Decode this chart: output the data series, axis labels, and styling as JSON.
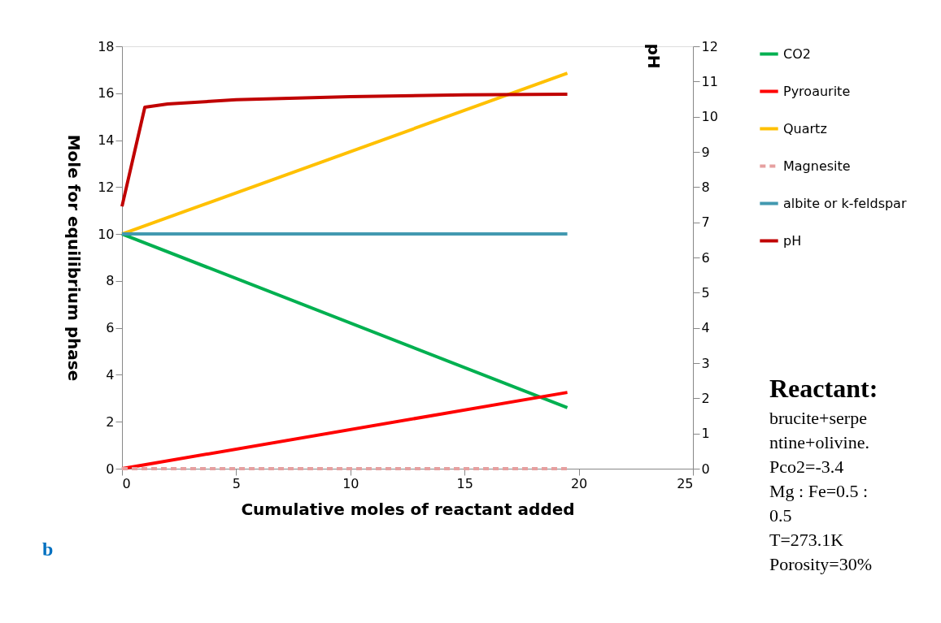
{
  "chart_data": {
    "type": "line",
    "xlabel": "Cumulative moles of reactant added",
    "ylabel": "Mole for equilibrium phase",
    "y2label": "pH",
    "xlim": [
      0,
      25
    ],
    "xticks": [
      0,
      5,
      10,
      15,
      20,
      25
    ],
    "ylim": [
      0,
      18
    ],
    "yticks": [
      0,
      2,
      4,
      6,
      8,
      10,
      12,
      14,
      16,
      18
    ],
    "y2lim": [
      0,
      12
    ],
    "y2ticks": [
      0,
      1,
      2,
      3,
      4,
      5,
      6,
      7,
      8,
      9,
      10,
      11,
      12
    ],
    "grid": false,
    "legend": "right",
    "marker": "none",
    "series": [
      {
        "name": "CO2",
        "color": "#00b050",
        "x": [
          0,
          19.5
        ],
        "values": [
          10,
          2.6
        ]
      },
      {
        "name": "Pyroaurite",
        "color": "#ff0000",
        "x": [
          0,
          19.5
        ],
        "values": [
          0,
          3.25
        ]
      },
      {
        "name": "Quartz",
        "color": "#ffc000",
        "x": [
          0,
          19.5
        ],
        "values": [
          10,
          16.85
        ]
      },
      {
        "name": "Magnesite",
        "color": "#e6a0a0",
        "line_style": "dashed",
        "x": [
          0,
          19.5
        ],
        "values": [
          0,
          0
        ]
      },
      {
        "name": "albite or k-feldspar",
        "color": "#4299b0",
        "x": [
          0,
          19.5
        ],
        "values": [
          10,
          10
        ]
      },
      {
        "name": "pH",
        "color": "#c00000",
        "axis": "y2",
        "x": [
          0,
          1,
          2,
          5,
          10,
          15,
          19.5
        ],
        "values": [
          7.45,
          10.27,
          10.36,
          10.48,
          10.57,
          10.62,
          10.64
        ]
      }
    ],
    "annotations": [
      "b",
      "Reactant:",
      "brucite+serpe\nntine+olivine.\nPco2=-3.4\nMg : Fe=0.5 :\n0.5\nT=273.1K\nPorosity=30%"
    ]
  }
}
